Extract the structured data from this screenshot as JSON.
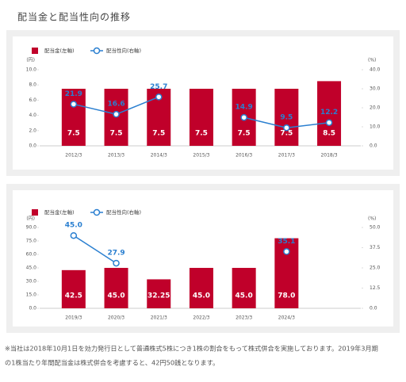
{
  "heading": "配当金と配当性向の推移",
  "note": [
    "※当社は2018年10月1日を効力発行日として普通株式5株につき1株の割合をもって株式併合を実施しております。2019年3月期",
    "の1株当たり年間配当金は株式併合を考慮すると、42円50銭となります。"
  ],
  "chart_data": [
    {
      "type": "bar",
      "y_unit": "(円)",
      "y2_unit": "(%)",
      "categories": [
        "2012/3",
        "2013/3",
        "2014/3",
        "2015/3",
        "2016/3",
        "2017/3",
        "2018/3"
      ],
      "series": [
        {
          "name": "配当金(左軸)",
          "color": "#c0002a",
          "type": "bar",
          "values": [
            7.5,
            7.5,
            7.5,
            7.5,
            7.5,
            7.5,
            8.5
          ]
        },
        {
          "name": "配当性向(右軸)",
          "color": "#2a7fd0",
          "type": "line",
          "axis": "y2",
          "values": [
            21.9,
            16.6,
            25.7,
            null,
            14.9,
            9.5,
            12.2
          ]
        }
      ],
      "ylim": [
        0,
        10
      ],
      "yticks": [
        {
          "value": 0,
          "label": "0.0"
        },
        {
          "value": 2,
          "label": "2.0"
        },
        {
          "value": 4,
          "label": "4.0"
        },
        {
          "value": 6,
          "label": "6.0"
        },
        {
          "value": 8,
          "label": "8.0"
        },
        {
          "value": 10,
          "label": "10.0"
        }
      ],
      "y2lim": [
        0,
        40
      ],
      "y2ticks": [
        {
          "value": 0,
          "label": "0.0"
        },
        {
          "value": 10,
          "label": "10.0"
        },
        {
          "value": 20,
          "label": "20.0"
        },
        {
          "value": 30,
          "label": "30.0"
        },
        {
          "value": 40,
          "label": "40.0"
        }
      ]
    },
    {
      "type": "bar",
      "y_unit": "(円)",
      "y2_unit": "(%)",
      "categories": [
        "2019/3",
        "2020/3",
        "2021/3",
        "2022/3",
        "2023/3",
        "2024/3"
      ],
      "series": [
        {
          "name": "配当金(左軸)",
          "color": "#c0002a",
          "type": "bar",
          "values": [
            42.5,
            45,
            32.25,
            45,
            45,
            78
          ],
          "value_labels": [
            "42.5",
            "45.0",
            "32.25",
            "45.0",
            "45.0",
            "78.0"
          ]
        },
        {
          "name": "配当性向(右軸)",
          "color": "#2a7fd0",
          "type": "line",
          "axis": "y2",
          "values": [
            45,
            27.9,
            null,
            null,
            null,
            35.1
          ],
          "value_labels": [
            "45.0",
            "27.9",
            null,
            null,
            null,
            "35.1"
          ]
        }
      ],
      "ylim": [
        0,
        90
      ],
      "yticks": [
        {
          "value": 0,
          "label": "0.0"
        },
        {
          "value": 15,
          "label": "15.0"
        },
        {
          "value": 30,
          "label": "30.0"
        },
        {
          "value": 45,
          "label": "45.0"
        },
        {
          "value": 60,
          "label": "60.0"
        },
        {
          "value": 75,
          "label": "75.0"
        },
        {
          "value": 90,
          "label": "90.0"
        }
      ],
      "y2lim": [
        0,
        50
      ],
      "y2ticks": [
        {
          "value": 0,
          "label": "0.0"
        },
        12.5,
        {
          "value": 25,
          "label": "25.0"
        },
        37.5,
        {
          "value": 50,
          "label": "50.0"
        }
      ]
    }
  ]
}
